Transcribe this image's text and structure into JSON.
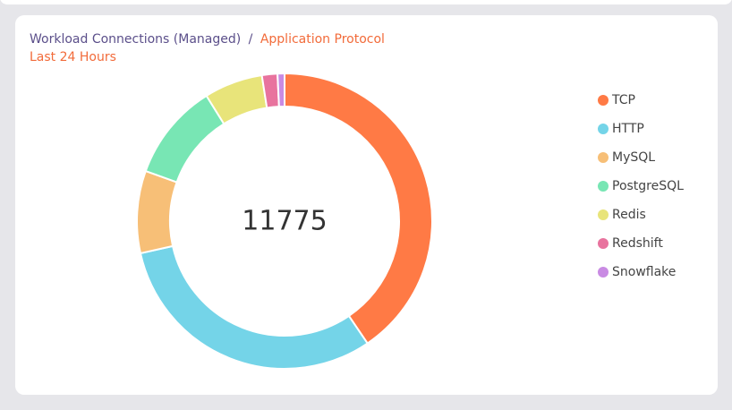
{
  "chart_data": {
    "type": "donut",
    "title_prefix": "Workload Connections (Managed)",
    "title_separator": "/",
    "title": "Application Protocol",
    "subtitle": "Last 24 Hours",
    "center_label": "11775",
    "categories": [
      "TCP",
      "HTTP",
      "MySQL",
      "PostgreSQL",
      "Redis",
      "Redshift",
      "Snowflake"
    ],
    "values": [
      4770,
      3650,
      1060,
      1250,
      755,
      200,
      90
    ],
    "colors": [
      "#ff7a45",
      "#74d4e8",
      "#f7bf77",
      "#78e6b4",
      "#e8e47a",
      "#e8739e",
      "#c98be3"
    ],
    "legend": "right"
  }
}
